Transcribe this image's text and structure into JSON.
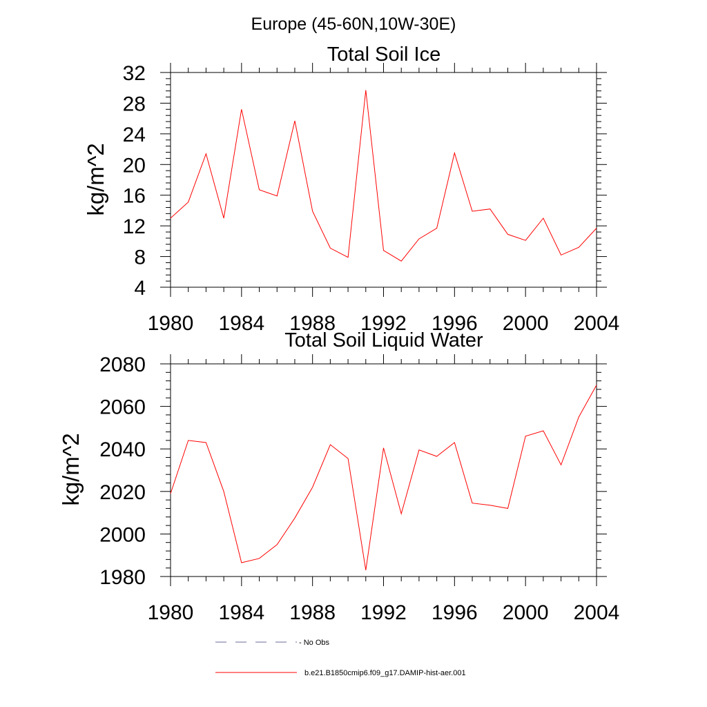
{
  "figure_title": "Europe (45-60N,10W-30E)",
  "colors": {
    "model": "#ff0000",
    "obs": "#6a6a9a",
    "axis": "#000000"
  },
  "legend": {
    "obs_label": "- No Obs",
    "model_label": "b.e21.B1850cmip6.f09_g17.DAMIP-hist-aer.001"
  },
  "chart_data": [
    {
      "type": "line",
      "title": "Total Soil Ice",
      "ylabel": "kg/m^2",
      "xlabel": "",
      "xlim": [
        1980,
        2004
      ],
      "ylim": [
        4,
        32
      ],
      "x_ticks": [
        "1980",
        "1984",
        "1988",
        "1992",
        "1996",
        "2000",
        "2004"
      ],
      "y_ticks": [
        "4",
        "8",
        "12",
        "16",
        "20",
        "24",
        "28",
        "32"
      ],
      "x": [
        1980,
        1981,
        1982,
        1983,
        1984,
        1985,
        1986,
        1987,
        1988,
        1989,
        1990,
        1991,
        1992,
        1993,
        1994,
        1995,
        1996,
        1997,
        1998,
        1999,
        2000,
        2001,
        2002,
        2003,
        2004
      ],
      "series": [
        {
          "name": "b.e21.B1850cmip6.f09_g17.DAMIP-hist-aer.001",
          "values": [
            13.0,
            15.1,
            21.4,
            13.0,
            27.2,
            16.7,
            15.9,
            25.7,
            13.9,
            9.1,
            7.9,
            29.7,
            8.8,
            7.4,
            10.3,
            11.7,
            21.5,
            13.9,
            14.2,
            10.9,
            10.1,
            13.0,
            8.2,
            9.2,
            11.7
          ]
        }
      ]
    },
    {
      "type": "line",
      "title": "Total Soil Liquid Water",
      "ylabel": "kg/m^2",
      "xlabel": "",
      "xlim": [
        1980,
        2004
      ],
      "ylim": [
        1980,
        2080
      ],
      "x_ticks": [
        "1980",
        "1984",
        "1988",
        "1992",
        "1996",
        "2000",
        "2004"
      ],
      "y_ticks": [
        "1980",
        "2000",
        "2020",
        "2040",
        "2060",
        "2080"
      ],
      "x": [
        1980,
        1981,
        1982,
        1983,
        1984,
        1985,
        1986,
        1987,
        1988,
        1989,
        1990,
        1991,
        1992,
        1993,
        1994,
        1995,
        1996,
        1997,
        1998,
        1999,
        2000,
        2001,
        2002,
        2003,
        2004
      ],
      "series": [
        {
          "name": "b.e21.B1850cmip6.f09_g17.DAMIP-hist-aer.001",
          "values": [
            2019.0,
            2044.0,
            2043.0,
            2020.0,
            1986.5,
            1988.5,
            1995.0,
            2007.5,
            2022.0,
            2042.0,
            2035.5,
            1983.0,
            2040.5,
            2009.5,
            2039.5,
            2036.5,
            2043.0,
            2014.5,
            2013.5,
            2012.0,
            2046.0,
            2048.5,
            2032.5,
            2055.0,
            2070.0
          ]
        }
      ]
    }
  ]
}
